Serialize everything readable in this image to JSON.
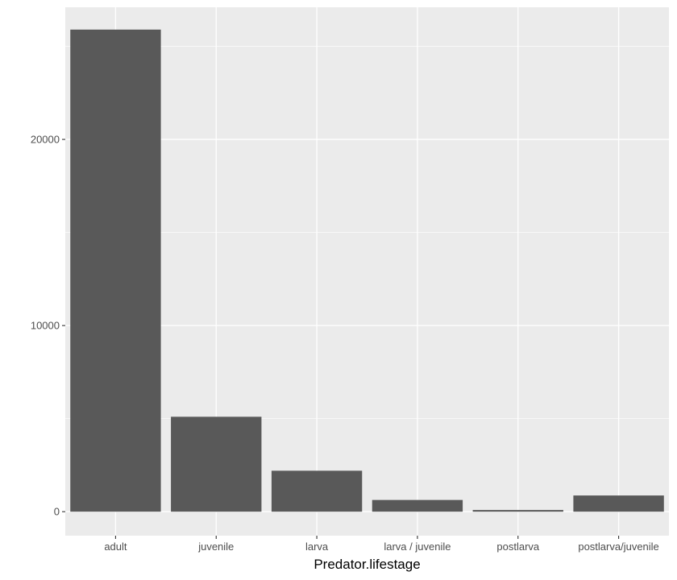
{
  "chart_data": {
    "type": "bar",
    "categories": [
      "adult",
      "juvenile",
      "larva",
      "larva / juvenile",
      "postlarva",
      "postlarva/juvenile"
    ],
    "values": [
      25900,
      5100,
      2200,
      630,
      90,
      870
    ],
    "xlabel": "Predator.lifestage",
    "ylabel": "",
    "ylim": [
      -1290,
      27100
    ],
    "yticks": [
      0,
      10000,
      20000
    ],
    "ytick_labels": [
      "0",
      "10000",
      "20000"
    ],
    "grid": true,
    "colors": {
      "panel": "#ebebeb",
      "grid_major": "#ffffff",
      "bar": "#595959",
      "tick_text": "#4d4d4d",
      "axis_title": "#000000"
    }
  }
}
